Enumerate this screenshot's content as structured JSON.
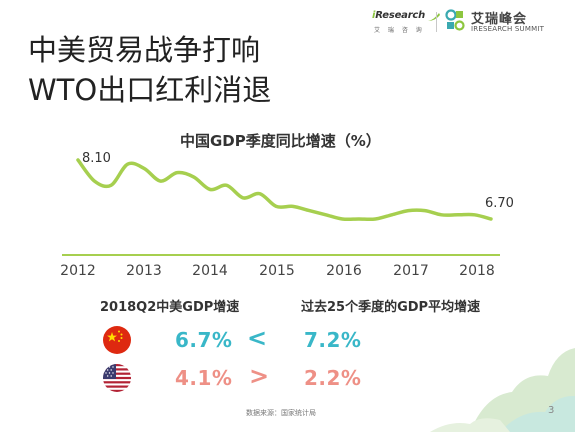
{
  "header": {
    "ir_logo_prefix": "i",
    "ir_logo_word": "Research",
    "ir_logo_sub": "艾 瑞 咨 询",
    "summit_cn": "艾瑞峰会",
    "summit_en": "IRESEARCH SUMMIT"
  },
  "title": {
    "line1": "中美贸易战争打响",
    "line2": "WTO出口红利消退"
  },
  "chart_data": {
    "type": "line",
    "title": "中国GDP季度同比增速（%）",
    "xlabel": "",
    "ylabel": "",
    "x_ticks": [
      "2012",
      "2013",
      "2014",
      "2015",
      "2016",
      "2017",
      "2018"
    ],
    "x": [
      2012.0,
      2012.25,
      2012.5,
      2012.75,
      2013.0,
      2013.25,
      2013.5,
      2013.75,
      2014.0,
      2014.25,
      2014.5,
      2014.75,
      2015.0,
      2015.25,
      2015.5,
      2015.75,
      2016.0,
      2016.25,
      2016.5,
      2016.75,
      2017.0,
      2017.25,
      2017.5,
      2017.75,
      2018.0,
      2018.25
    ],
    "series": [
      {
        "values": [
          8.1,
          7.6,
          7.5,
          8.0,
          7.9,
          7.6,
          7.8,
          7.7,
          7.4,
          7.5,
          7.2,
          7.3,
          7.0,
          7.0,
          6.9,
          6.8,
          6.7,
          6.7,
          6.7,
          6.8,
          6.9,
          6.9,
          6.8,
          6.8,
          6.8,
          6.7
        ],
        "color": "#a6cf4f"
      }
    ],
    "ylim": [
      6.0,
      8.4
    ],
    "annotations": [
      {
        "text": "8.10",
        "at": "first"
      },
      {
        "text": "6.70",
        "at": "last"
      }
    ],
    "grid": false,
    "legend": "none"
  },
  "comparison": {
    "left_heading": "2018Q2中美GDP增速",
    "right_heading": "过去25个季度的GDP平均增速",
    "rows": [
      {
        "country": "china",
        "flag_icon": "china-flag-icon",
        "current": "6.7%",
        "operator": "<",
        "average": "7.2%",
        "color": "#39b7c8"
      },
      {
        "country": "usa",
        "flag_icon": "usa-flag-icon",
        "current": "4.1%",
        "operator": ">",
        "average": "2.2%",
        "color": "#ee9086"
      }
    ]
  },
  "footer": {
    "source": "数据来源：国家统计局",
    "page": "3"
  },
  "colors": {
    "line": "#a6cf4f",
    "baseline": "#a6cf4f",
    "teal": "#39b7c8",
    "salmon": "#ee9086",
    "deco_green": "#d8ead0",
    "deco_mint": "#c8e8df"
  }
}
